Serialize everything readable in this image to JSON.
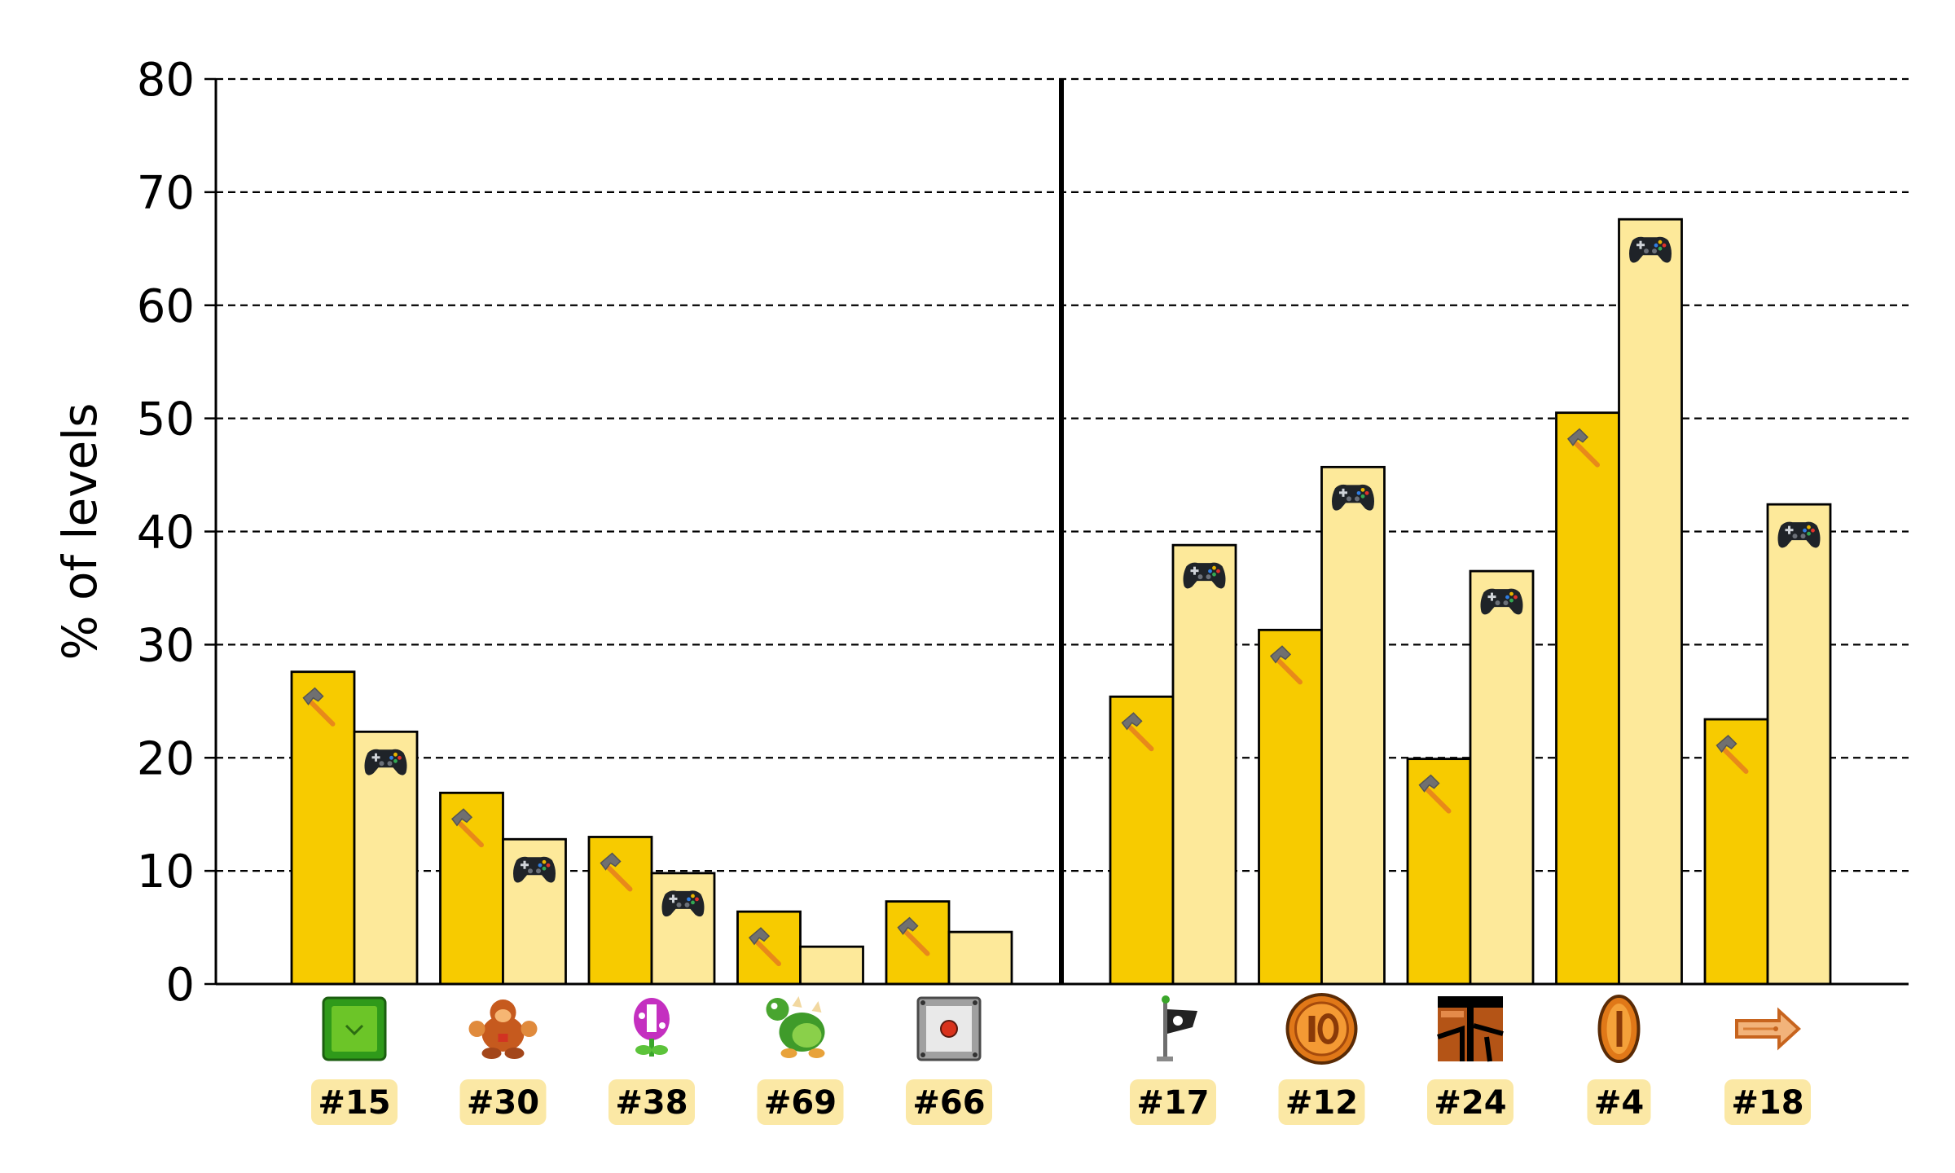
{
  "chart_data": {
    "type": "bar",
    "ylabel": "% of levels",
    "ylim": [
      0,
      80
    ],
    "yticks": [
      "0",
      "10",
      "20",
      "30",
      "40",
      "50",
      "60",
      "70",
      "80"
    ],
    "grid": "horizontal-dashed",
    "groups": [
      {
        "items": [
          {
            "rank": "#15",
            "icon": "green-block-icon",
            "build": 27.6,
            "play": 22.3
          },
          {
            "rank": "#30",
            "icon": "donkey-kong-icon",
            "build": 16.9,
            "play": 12.8
          },
          {
            "rank": "#38",
            "icon": "piranha-plant-icon",
            "build": 13.0,
            "play": 9.8
          },
          {
            "rank": "#69",
            "icon": "bowser-icon",
            "build": 6.4,
            "play": 3.3
          },
          {
            "rank": "#66",
            "icon": "on-off-switch-icon",
            "build": 7.3,
            "play": 4.6
          }
        ]
      },
      {
        "items": [
          {
            "rank": "#17",
            "icon": "checkpoint-flag-icon",
            "build": 25.4,
            "play": 38.8
          },
          {
            "rank": "#12",
            "icon": "ten-coin-icon",
            "build": 31.3,
            "play": 45.7
          },
          {
            "rank": "#24",
            "icon": "ground-tile-icon",
            "build": 19.9,
            "play": 36.5
          },
          {
            "rank": "#4",
            "icon": "coin-icon",
            "build": 50.5,
            "play": 67.6
          },
          {
            "rank": "#18",
            "icon": "arrow-sign-icon",
            "build": 23.4,
            "play": 42.4
          }
        ]
      }
    ],
    "series": [
      {
        "key": "build",
        "icon": "hammer-icon",
        "color": "#f7cb00"
      },
      {
        "key": "play",
        "icon": "gamepad-icon",
        "color": "#fde99a"
      }
    ],
    "label_badge_color": "#fbe8a5"
  }
}
